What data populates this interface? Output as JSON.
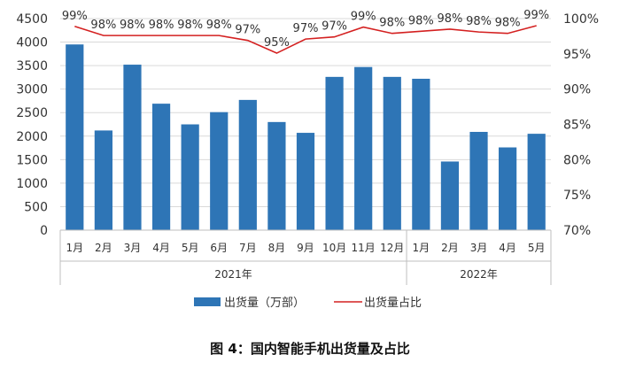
{
  "caption": "图 4：国内智能手机出货量及占比",
  "chart_data": {
    "type": "bar",
    "categories": [
      "1月",
      "2月",
      "3月",
      "4月",
      "5月",
      "6月",
      "7月",
      "8月",
      "9月",
      "10月",
      "11月",
      "12月",
      "1月",
      "2月",
      "3月",
      "4月",
      "5月"
    ],
    "year_groups": [
      {
        "label": "2021年",
        "count": 12
      },
      {
        "label": "2022年",
        "count": 5
      }
    ],
    "series": [
      {
        "name": "出货量（万部）",
        "type": "bar",
        "axis": "left",
        "color": "#2e75b6",
        "values": [
          3950,
          2120,
          3520,
          2690,
          2250,
          2510,
          2770,
          2300,
          2070,
          3260,
          3470,
          3260,
          3220,
          1460,
          2090,
          1760,
          2050
        ]
      },
      {
        "name": "出货量占比",
        "type": "line",
        "axis": "right",
        "color": "#d42020",
        "values": [
          99,
          98,
          98,
          98,
          98,
          98,
          97,
          95,
          97,
          97,
          99,
          98,
          98,
          98,
          98,
          98,
          99
        ],
        "labels": [
          "99%",
          "98%",
          "98%",
          "98%",
          "98%",
          "98%",
          "97%",
          "95%",
          "97%",
          "97%",
          "99%",
          "98%",
          "98%",
          "98%",
          "98%",
          "98%",
          "99%"
        ],
        "plot_values": [
          98.9,
          97.6,
          97.6,
          97.6,
          97.6,
          97.6,
          96.9,
          95.1,
          97.1,
          97.4,
          98.8,
          97.9,
          98.2,
          98.5,
          98.1,
          97.9,
          99.0
        ]
      }
    ],
    "y_left": {
      "min": 0,
      "max": 4500,
      "ticks": [
        "0",
        "500",
        "1000",
        "1500",
        "2000",
        "2500",
        "3000",
        "3500",
        "4000",
        "4500"
      ]
    },
    "y_right": {
      "min": 70,
      "max": 100,
      "ticks": [
        "70%",
        "75%",
        "80%",
        "85%",
        "90%",
        "95%",
        "100%"
      ]
    },
    "legend_position": "bottom"
  }
}
